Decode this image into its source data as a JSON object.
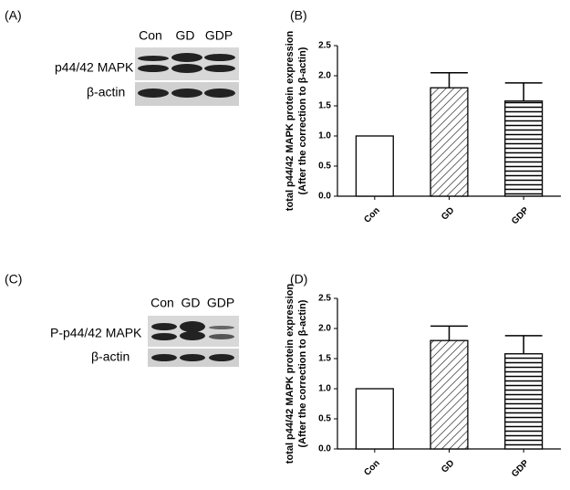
{
  "blots": [
    {
      "label": "(A)",
      "lanes": [
        "Con",
        "GD",
        "GDP"
      ],
      "rows": [
        "p44/42 MAPK",
        "β-actin"
      ]
    },
    {
      "label": "(C)",
      "lanes": [
        "Con",
        "GD",
        "GDP"
      ],
      "rows": [
        "P-p44/42 MAPK",
        "β-actin"
      ]
    }
  ],
  "chart_data": [
    {
      "type": "bar",
      "panel_label": "(B)",
      "y_label": [
        "total p44/42 MAPK protein expression",
        "(After the correction to β-actin)"
      ],
      "categories": [
        "Con",
        "GD",
        "GDP"
      ],
      "values": [
        1.0,
        1.8,
        1.58
      ],
      "errors": [
        0,
        0.25,
        0.3
      ],
      "hatch": [
        "none",
        "diagonal",
        "horizontal"
      ],
      "color": "#000000",
      "ylim": [
        0,
        2.5
      ],
      "yticks": [
        {
          "value": 0,
          "label": "0.0"
        },
        0.5,
        {
          "value": 1,
          "label": "1.0"
        },
        1.5,
        {
          "value": 2,
          "label": "2.0"
        },
        2.5
      ]
    },
    {
      "type": "bar",
      "panel_label": "(D)",
      "y_label": [
        "total p44/42 MAPK protein expression",
        "(After the correction to β-actin)"
      ],
      "categories": [
        "Con",
        "GD",
        "GDP"
      ],
      "values": [
        1.0,
        1.8,
        1.58
      ],
      "errors": [
        0,
        0.24,
        0.3
      ],
      "hatch": [
        "none",
        "diagonal",
        "horizontal"
      ],
      "color": "#000000",
      "ylim": [
        0,
        2.5
      ],
      "yticks": [
        {
          "value": 0,
          "label": "0.0"
        },
        0.5,
        {
          "value": 1,
          "label": "1.0"
        },
        1.5,
        {
          "value": 2,
          "label": "2.0"
        },
        2.5
      ]
    }
  ]
}
